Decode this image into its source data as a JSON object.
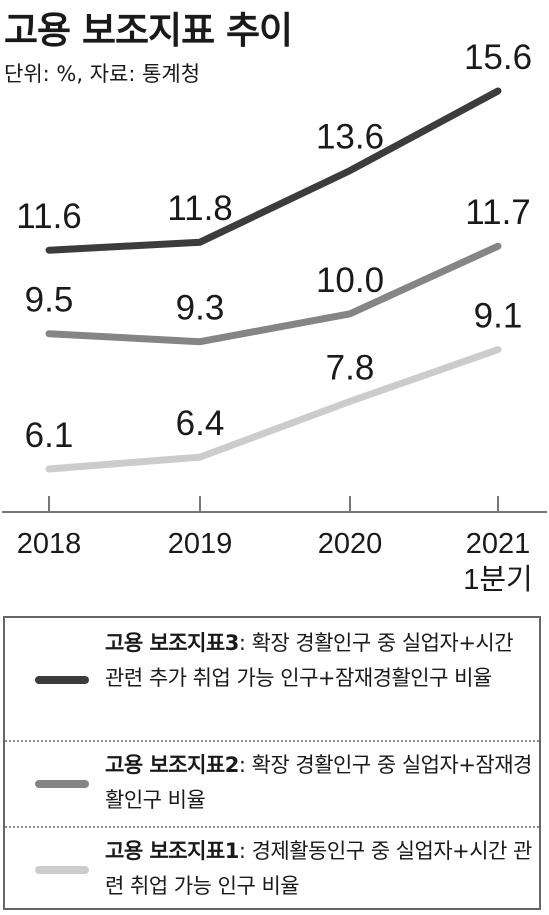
{
  "title": "고용 보조지표 추이",
  "subtitle": "단위: %, 자료: 통계청",
  "chart_data": {
    "type": "line",
    "categories": [
      "2018",
      "2019",
      "2020",
      "2021 1분기"
    ],
    "tick_labels": [
      [
        "2018"
      ],
      [
        "2019"
      ],
      [
        "2020"
      ],
      [
        "2021",
        "1분기"
      ]
    ],
    "ylim": [
      4.5,
      16.5
    ],
    "grid": false,
    "legend_position": "bottom",
    "series": [
      {
        "name": "고용 보조지표3",
        "values": [
          11.6,
          11.8,
          13.6,
          15.6
        ],
        "labels": [
          "11.6",
          "11.8",
          "13.6",
          "15.6"
        ],
        "color": "#3c3c3c"
      },
      {
        "name": "고용 보조지표2",
        "values": [
          9.5,
          9.3,
          10.0,
          11.7
        ],
        "labels": [
          "9.5",
          "9.3",
          "10.0",
          "11.7"
        ],
        "color": "#858585"
      },
      {
        "name": "고용 보조지표1",
        "values": [
          6.1,
          6.4,
          7.8,
          9.1
        ],
        "labels": [
          "6.1",
          "6.4",
          "7.8",
          "9.1"
        ],
        "color": "#cccccc"
      }
    ]
  },
  "legend": [
    {
      "name": "고용 보조지표3",
      "desc": ": 확장 경활인구 중 실업자+시간 관련 추가 취업 가능 인구+잠재경활인구 비율",
      "color": "#3c3c3c"
    },
    {
      "name": "고용 보조지표2",
      "desc": ": 확장 경활인구 중 실업자+잠재경활인구 비율",
      "color": "#858585"
    },
    {
      "name": "고용 보조지표1",
      "desc": ": 경제활동인구 중 실업자+시간 관련 취업 가능 인구 비율",
      "color": "#cccccc"
    }
  ]
}
